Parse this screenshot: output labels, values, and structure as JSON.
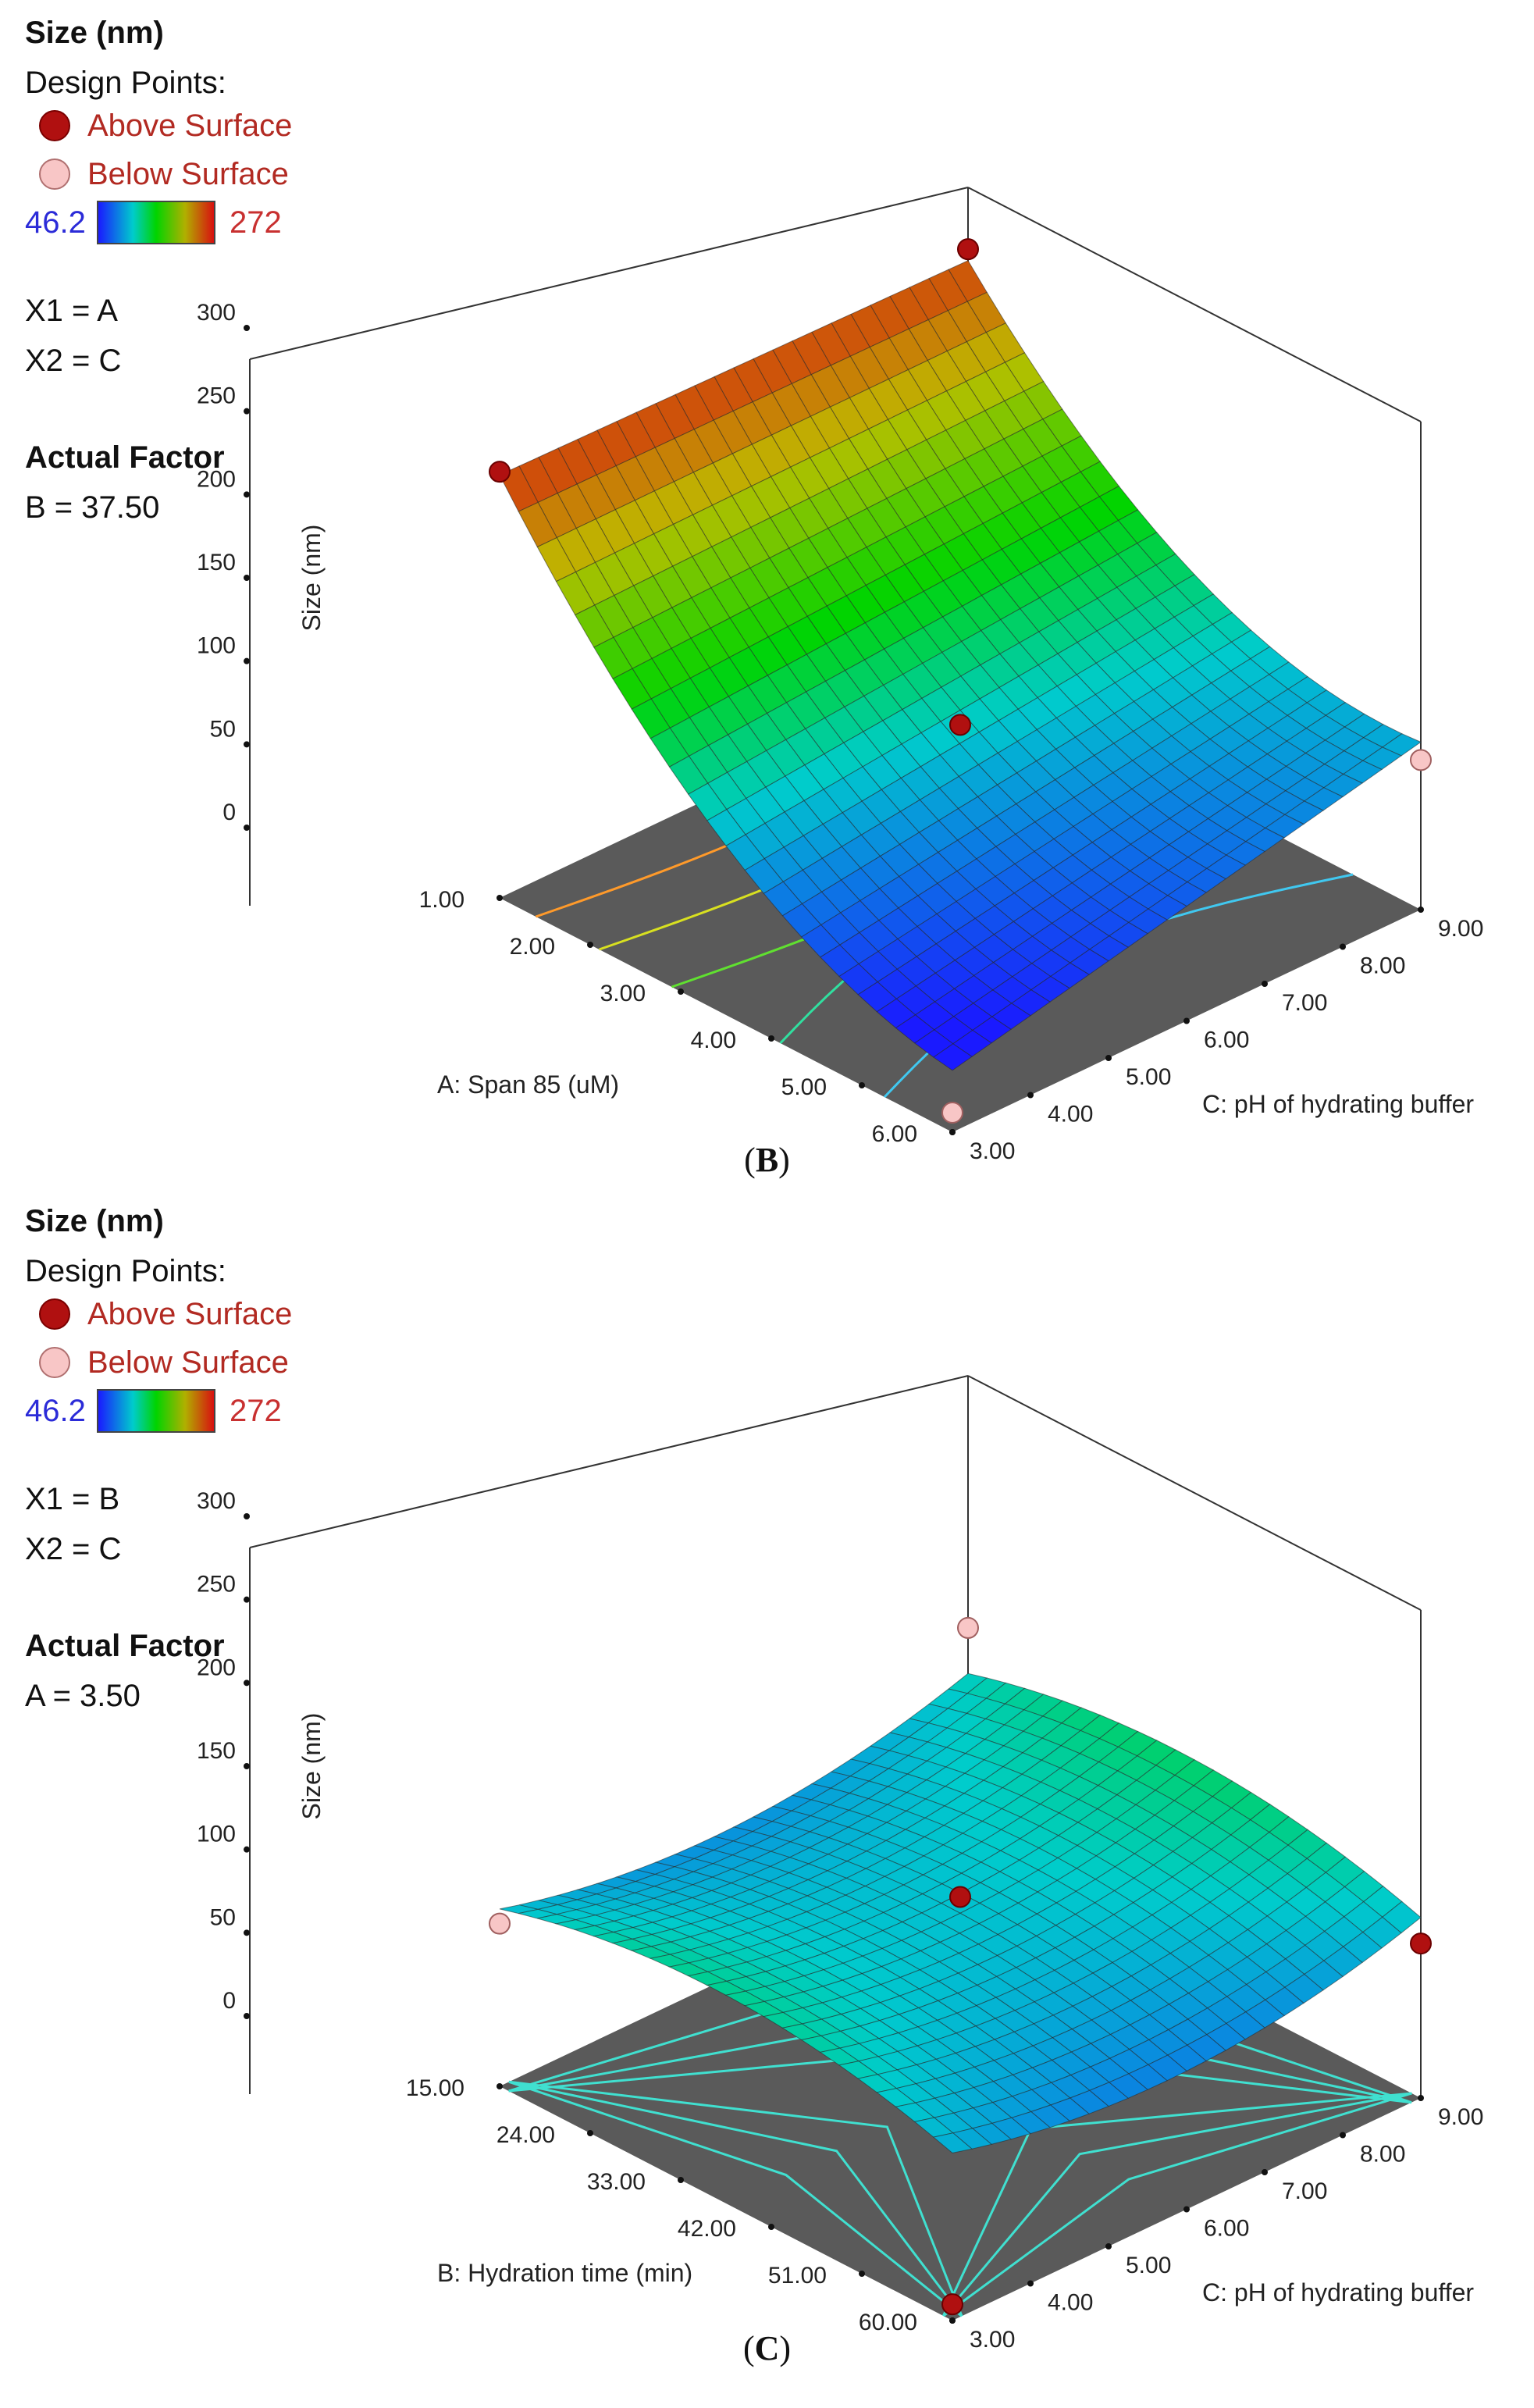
{
  "panels": [
    {
      "legend": {
        "title": "Size (nm)",
        "design_points": "Design Points:",
        "above": "Above Surface",
        "below": "Below Surface",
        "scale_min": "46.2",
        "scale_max": "272",
        "x1": "X1 = A",
        "x2": "X2 = C",
        "actual_factor": "Actual Factor",
        "actual_factor_value": "B = 37.50"
      },
      "caption_letter": "B"
    },
    {
      "legend": {
        "title": "Size (nm)",
        "design_points": "Design Points:",
        "above": "Above Surface",
        "below": "Below Surface",
        "scale_min": "46.2",
        "scale_max": "272",
        "x1": "X1 = B",
        "x2": "X2 = C",
        "actual_factor": "Actual Factor",
        "actual_factor_value": "A = 3.50"
      },
      "caption_letter": "C"
    }
  ],
  "colors": {
    "color_low": "#1a1aff",
    "color_high": "#d81010",
    "floor": "#5a5a5a",
    "above_point": "#b01010",
    "below_point": "#f8c6c6"
  },
  "chart_data": [
    {
      "type": "surface",
      "zlabel": "Size (nm)",
      "xlabel": "A: Span 85 (uM)",
      "ylabel": "C: pH of hydrating buffer",
      "x_ticks": [
        "1.00",
        "2.00",
        "3.00",
        "4.00",
        "5.00",
        "6.00"
      ],
      "y_ticks": [
        "3.00",
        "4.00",
        "5.00",
        "6.00",
        "7.00",
        "8.00",
        "9.00"
      ],
      "z_ticks": [
        "0",
        "50",
        "100",
        "150",
        "200",
        "250",
        "300"
      ],
      "xlim": [
        1,
        6
      ],
      "ylim": [
        3,
        9
      ],
      "zlim": [
        0,
        300
      ],
      "color_range": [
        46.2,
        272
      ],
      "surface_corners": {
        "x_min_y_min": 260,
        "x_min_y_max": 255,
        "x_max_y_min": 38,
        "x_max_y_max": 103
      },
      "surface_curvature": 45,
      "design_points": [
        {
          "x": 1,
          "y": 3,
          "z": 262,
          "position": "Above Surface"
        },
        {
          "x": 1,
          "y": 9,
          "z": 262,
          "position": "Above Surface"
        },
        {
          "x": 3.5,
          "y": 6,
          "z": 110,
          "position": "Above Surface"
        },
        {
          "x": 6,
          "y": 9,
          "z": 92,
          "position": "Below Surface"
        },
        {
          "x": 6,
          "y": 3,
          "z": 12,
          "position": "Below Surface"
        }
      ]
    },
    {
      "type": "surface",
      "zlabel": "Size (nm)",
      "xlabel": "B: Hydration time (min)",
      "ylabel": "C: pH of hydrating buffer",
      "x_ticks": [
        "15.00",
        "24.00",
        "33.00",
        "42.00",
        "51.00",
        "60.00"
      ],
      "y_ticks": [
        "3.00",
        "4.00",
        "5.00",
        "6.00",
        "7.00",
        "8.00",
        "9.00"
      ],
      "z_ticks": [
        "0",
        "50",
        "100",
        "150",
        "200",
        "250",
        "300"
      ],
      "xlim": [
        15,
        60
      ],
      "ylim": [
        3,
        9
      ],
      "zlim": [
        0,
        300
      ],
      "color_range": [
        46.2,
        272
      ],
      "surface_center": 110,
      "surface_saddle_amplitude": 22,
      "design_points": [
        {
          "x": 15,
          "y": 3,
          "z": 100,
          "position": "Below Surface"
        },
        {
          "x": 15,
          "y": 9,
          "z": 145,
          "position": "Below Surface"
        },
        {
          "x": 37.5,
          "y": 6,
          "z": 120,
          "position": "Above Surface"
        },
        {
          "x": 60,
          "y": 9,
          "z": 95,
          "position": "Above Surface"
        },
        {
          "x": 60,
          "y": 3,
          "z": 10,
          "position": "Above Surface"
        }
      ]
    }
  ]
}
